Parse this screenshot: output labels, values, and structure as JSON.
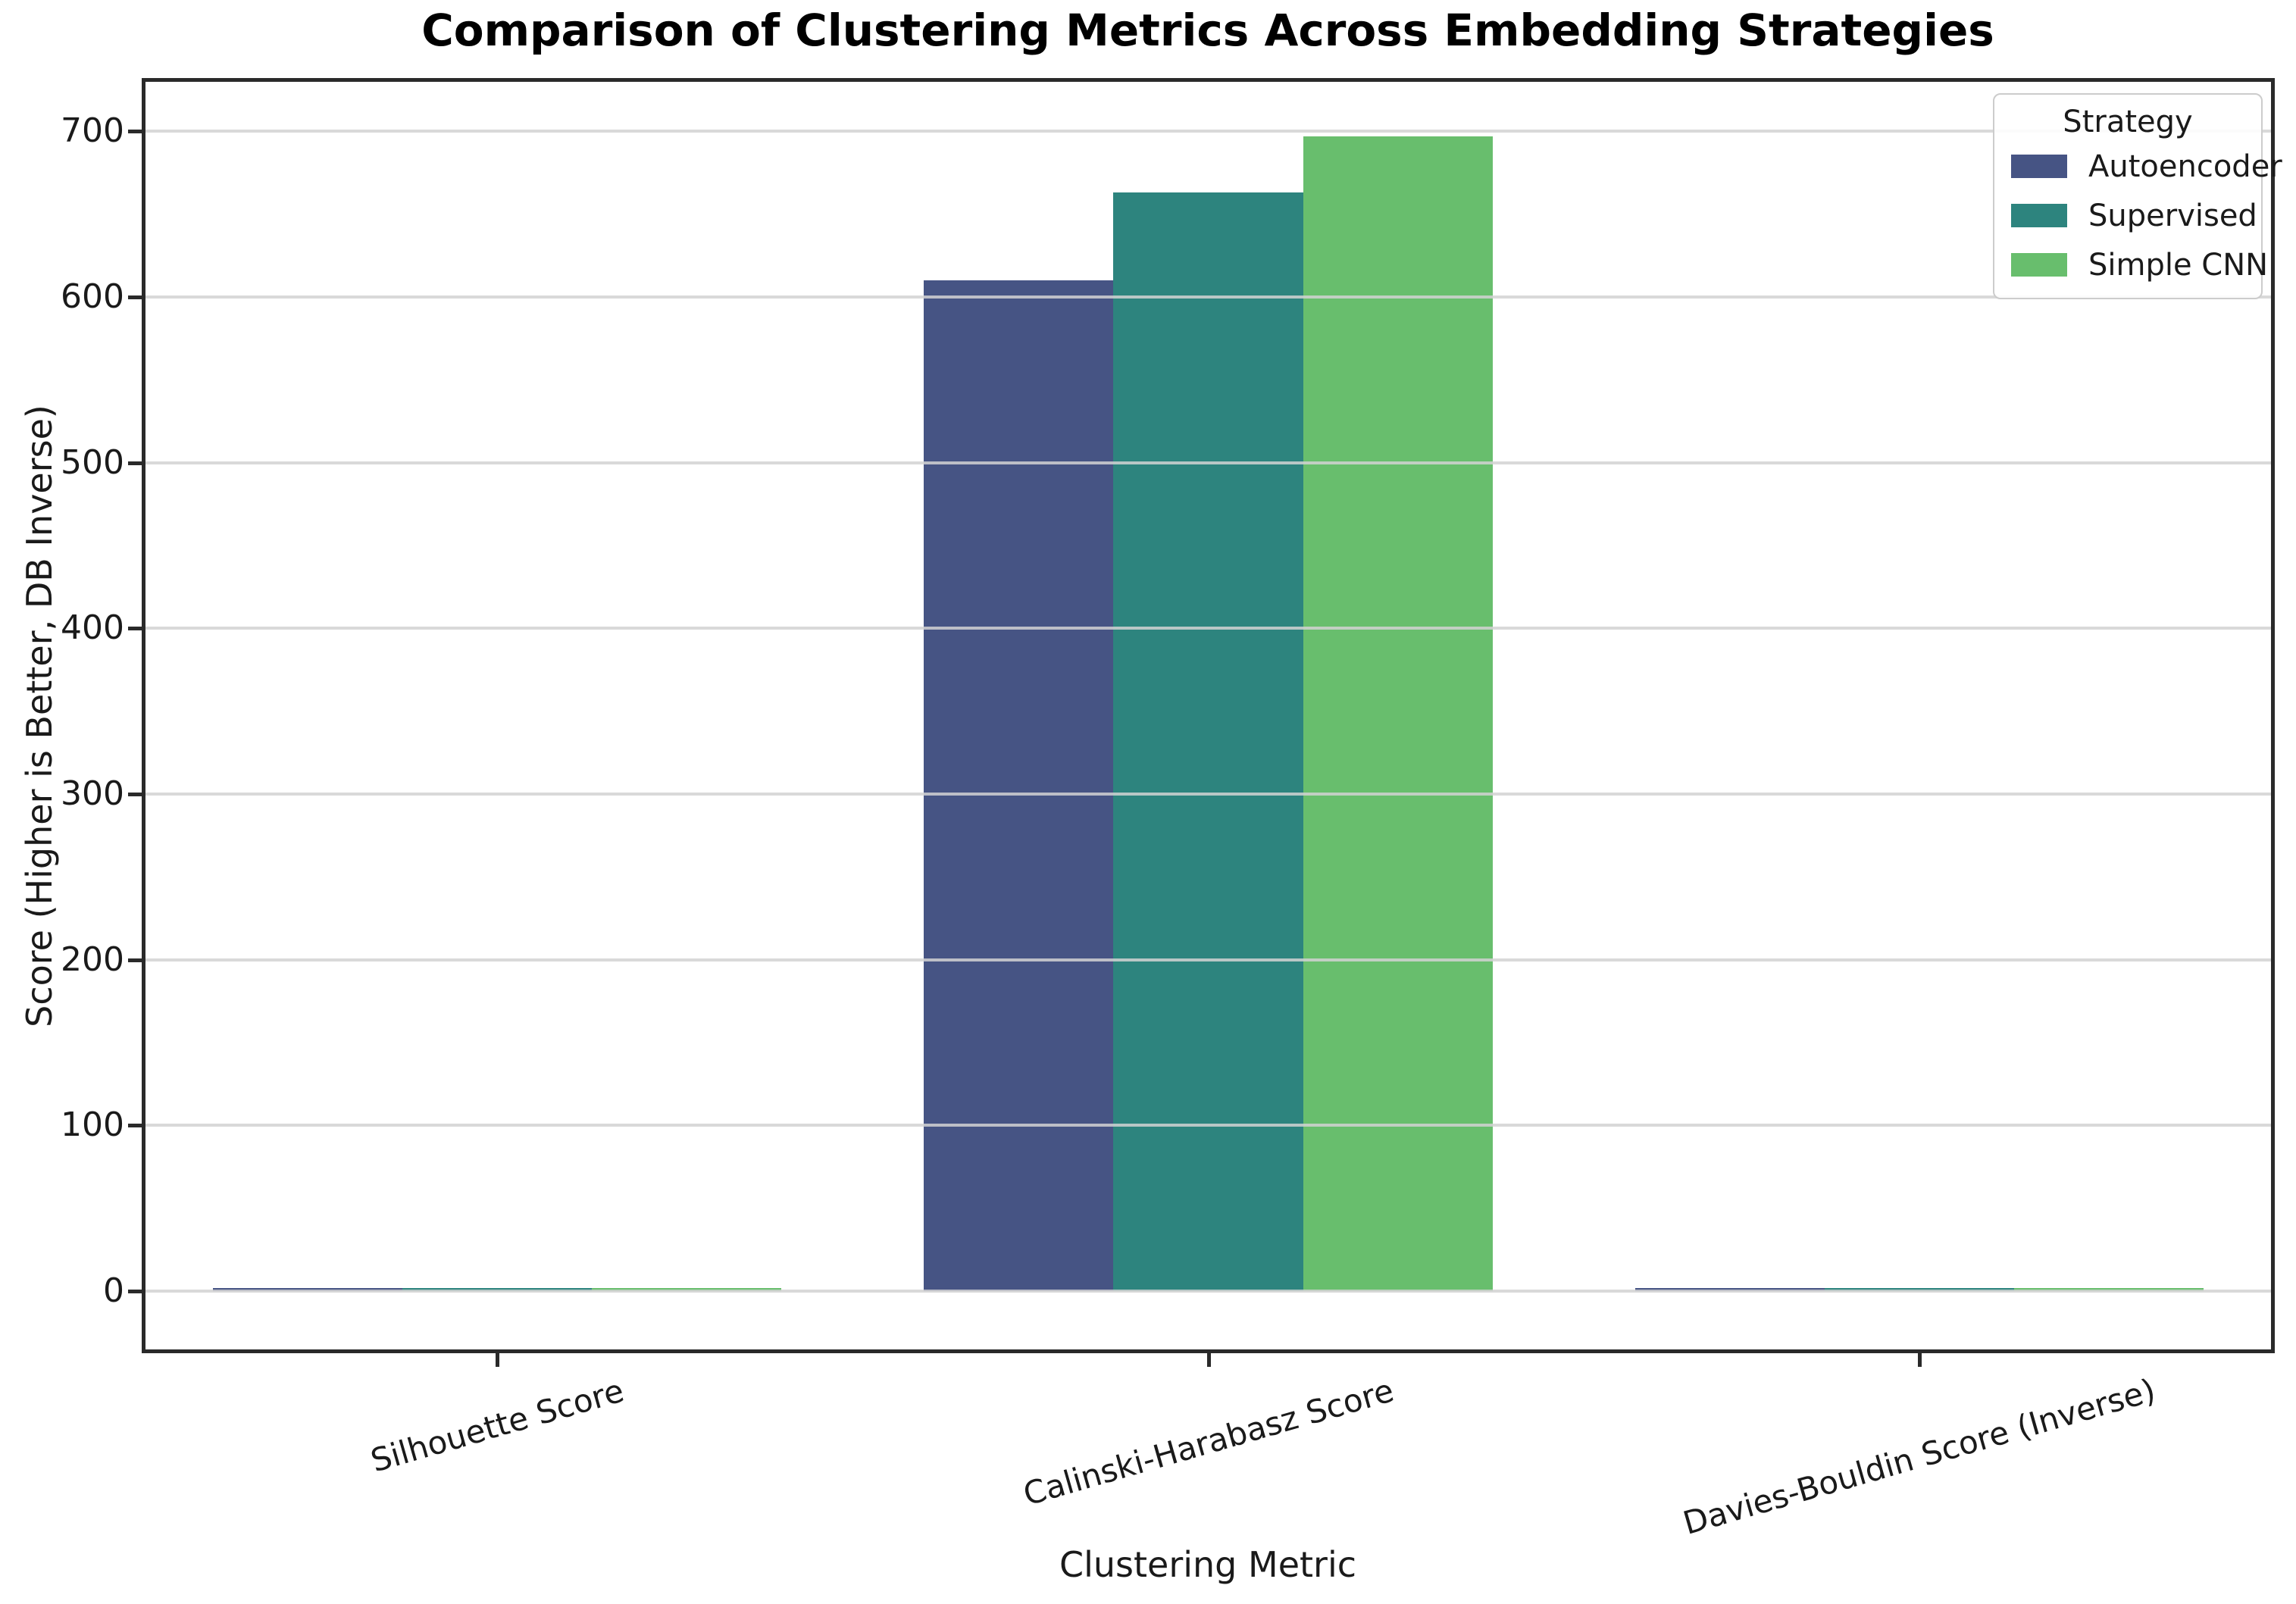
{
  "chart_data": {
    "type": "bar",
    "title": "Comparison of Clustering Metrics Across Embedding Strategies",
    "xlabel": "Clustering Metric",
    "ylabel": "Score (Higher is Better, DB Inverse)",
    "categories": [
      "Silhouette Score",
      "Calinski-Harabasz Score",
      "Davies-Bouldin Score (Inverse)"
    ],
    "series": [
      {
        "name": "Autoencoder",
        "color": "#465484",
        "values": [
          0.52,
          610,
          0.62
        ]
      },
      {
        "name": "Supervised",
        "color": "#2d847e",
        "values": [
          0.55,
          663,
          0.72
        ]
      },
      {
        "name": "Simple CNN",
        "color": "#68be6d",
        "values": [
          0.6,
          697,
          0.85
        ]
      }
    ],
    "yticks": [
      0,
      100,
      200,
      300,
      400,
      500,
      600,
      700
    ],
    "ylim": [
      -36,
      732
    ],
    "grid": "horizontal",
    "legend": {
      "title": "Strategy",
      "position": "upper-right",
      "entries": [
        "Autoencoder",
        "Supervised",
        "Simple CNN"
      ]
    },
    "colors": {
      "background": "#ffffff",
      "axes": "#2a2a2a",
      "grid": "#d2d2d2",
      "text": "#1a1a1a"
    }
  }
}
